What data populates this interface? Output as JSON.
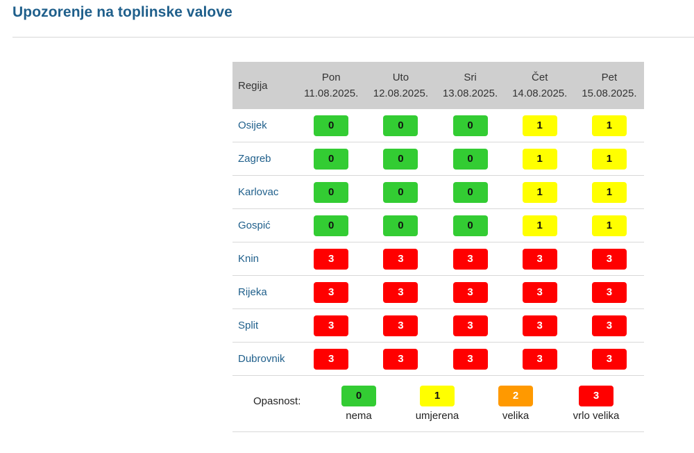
{
  "page": {
    "title": "Upozorenje na toplinske valove"
  },
  "table": {
    "header_region": "Regija",
    "days": [
      {
        "name": "Pon",
        "date": "11.08.2025."
      },
      {
        "name": "Uto",
        "date": "12.08.2025."
      },
      {
        "name": "Sri",
        "date": "13.08.2025."
      },
      {
        "name": "Čet",
        "date": "14.08.2025."
      },
      {
        "name": "Pet",
        "date": "15.08.2025."
      }
    ],
    "rows": [
      {
        "region": "Osijek",
        "levels": [
          "0",
          "0",
          "0",
          "1",
          "1"
        ]
      },
      {
        "region": "Zagreb",
        "levels": [
          "0",
          "0",
          "0",
          "1",
          "1"
        ]
      },
      {
        "region": "Karlovac",
        "levels": [
          "0",
          "0",
          "0",
          "1",
          "1"
        ]
      },
      {
        "region": "Gospić",
        "levels": [
          "0",
          "0",
          "0",
          "1",
          "1"
        ]
      },
      {
        "region": "Knin",
        "levels": [
          "3",
          "3",
          "3",
          "3",
          "3"
        ]
      },
      {
        "region": "Rijeka",
        "levels": [
          "3",
          "3",
          "3",
          "3",
          "3"
        ]
      },
      {
        "region": "Split",
        "levels": [
          "3",
          "3",
          "3",
          "3",
          "3"
        ]
      },
      {
        "region": "Dubrovnik",
        "levels": [
          "3",
          "3",
          "3",
          "3",
          "3"
        ]
      }
    ]
  },
  "legend": {
    "label": "Opasnost:",
    "items": [
      {
        "level": "0",
        "text": "nema"
      },
      {
        "level": "1",
        "text": "umjerena"
      },
      {
        "level": "2",
        "text": "velika"
      },
      {
        "level": "3",
        "text": "vrlo velika"
      }
    ]
  },
  "colors": {
    "level_0": "#33cc33",
    "level_1": "#ffff00",
    "level_2": "#ff9900",
    "level_3": "#ff0000",
    "title": "#1f5f8b",
    "header_bg": "#cfcfcf"
  }
}
